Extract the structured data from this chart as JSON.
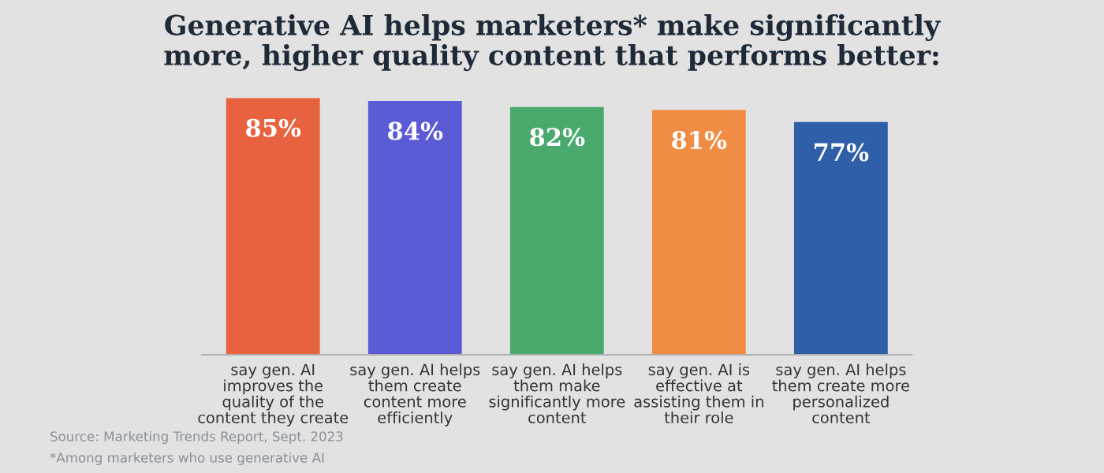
{
  "chart_data": {
    "type": "bar",
    "title": "Generative AI helps marketers* make significantly\nmore, higher quality content that performs better:",
    "categories": [
      "say gen. AI\nimproves the\nquality of the\ncontent they create",
      "say gen. AI helps\nthem create\ncontent more\nefficiently",
      "say gen. AI helps\nthem make\nsignificantly more\ncontent",
      "say gen. AI is\neffective at\nassisting them in\ntheir role",
      "say gen. AI helps\nthem create more\npersonalized\ncontent"
    ],
    "values": [
      85,
      84,
      82,
      81,
      77
    ],
    "value_labels": [
      "85%",
      "84%",
      "82%",
      "81%",
      "77%"
    ],
    "colors": [
      "#e8623f",
      "#5b5bd6",
      "#4aaa6e",
      "#f08c43",
      "#2f5fa8"
    ],
    "annotations": [
      "Source: Marketing Trends Report, Sept. 2023",
      "*Among marketers who use generative AI"
    ]
  }
}
